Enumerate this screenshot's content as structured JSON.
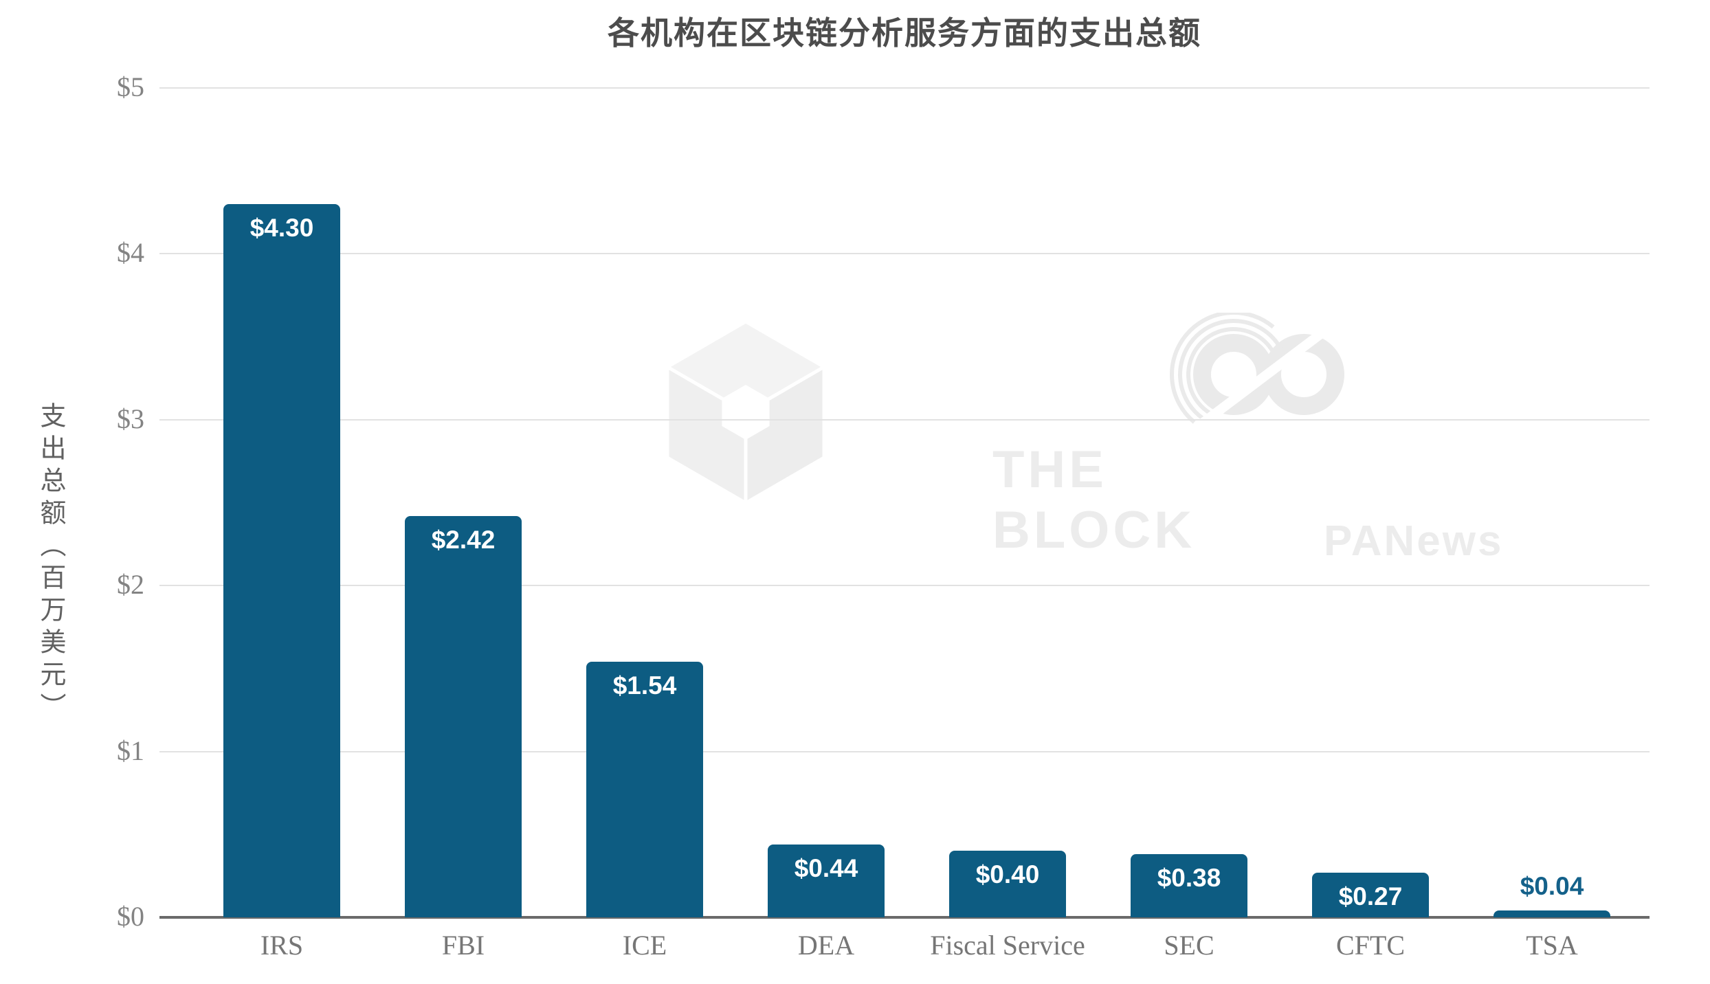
{
  "title": "各机构在区块链分析服务方面的支出总额",
  "y_axis": {
    "title": "支出总额（百万美元）"
  },
  "watermarks": {
    "block_line1": "THE",
    "block_line2": "BLOCK",
    "panews": "PANews"
  },
  "colors": {
    "bar": "#0d5c82",
    "value_label_inside": "#ffffff",
    "value_label_outside": "#14618a",
    "gridline": "#e2e2e2",
    "axis_line": "#6a6a6a",
    "title": "#4c4c4c",
    "tick_labels": "#838383",
    "category_labels": "#767676",
    "watermark": "#ececec"
  },
  "chart_data": {
    "type": "bar",
    "title": "各机构在区块链分析服务方面的支出总额",
    "categories": [
      "IRS",
      "FBI",
      "ICE",
      "DEA",
      "Fiscal Service",
      "SEC",
      "CFTC",
      "TSA"
    ],
    "values": [
      4.3,
      2.42,
      1.54,
      0.44,
      0.4,
      0.38,
      0.27,
      0.04
    ],
    "value_labels": [
      "$4.30",
      "$2.42",
      "$1.54",
      "$0.44",
      "$0.40",
      "$0.38",
      "$0.27",
      "$0.04"
    ],
    "ylabel": "支出总额（百万美元）",
    "ylim": [
      0,
      5
    ],
    "ytick_labels": [
      "$0",
      "$1",
      "$2",
      "$3",
      "$4",
      "$5"
    ],
    "grid": true,
    "legend": false,
    "bar_color": "#0d5c82"
  }
}
